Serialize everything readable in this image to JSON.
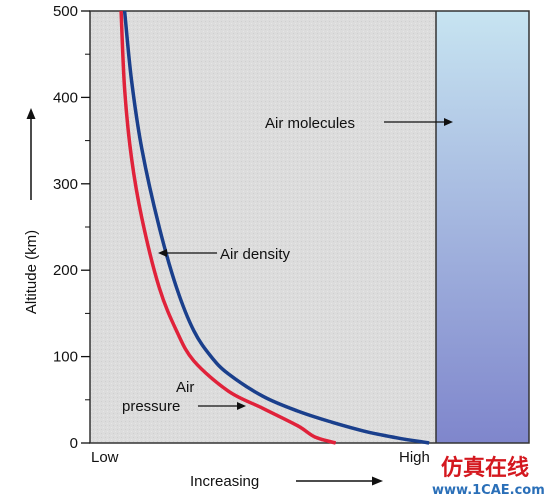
{
  "colors": {
    "plot_bg": "#dcdcdc",
    "density": "#1a3f8c",
    "pressure": "#e0223a",
    "molecules_top": "#c7e4f1",
    "molecules_bottom": "#7f86cc",
    "watermark_red": "#d4181f",
    "watermark_blue": "#2a6fb8"
  },
  "chart_data": {
    "type": "line",
    "ylabel": "Altitude (km)",
    "ylim": [
      0,
      500
    ],
    "yticks": [
      "0",
      "100",
      "200",
      "300",
      "400",
      "500"
    ],
    "x_left_label": "Low",
    "x_right_label": "High",
    "xlabel": "Increasing",
    "series": [
      {
        "name": "Air density",
        "points": [
          [
            0.98,
            0
          ],
          [
            0.95,
            2
          ],
          [
            0.9,
            5
          ],
          [
            0.8,
            13
          ],
          [
            0.7,
            24
          ],
          [
            0.6,
            37
          ],
          [
            0.5,
            54
          ],
          [
            0.4,
            80
          ],
          [
            0.35,
            100
          ],
          [
            0.3,
            130
          ],
          [
            0.25,
            180
          ],
          [
            0.2,
            250
          ],
          [
            0.15,
            340
          ],
          [
            0.12,
            420
          ],
          [
            0.1,
            500
          ]
        ]
      },
      {
        "name": "Air pressure",
        "points": [
          [
            0.71,
            0
          ],
          [
            0.65,
            7
          ],
          [
            0.6,
            20
          ],
          [
            0.5,
            40
          ],
          [
            0.4,
            60
          ],
          [
            0.3,
            95
          ],
          [
            0.25,
            130
          ],
          [
            0.2,
            180
          ],
          [
            0.15,
            260
          ],
          [
            0.12,
            330
          ],
          [
            0.1,
            410
          ],
          [
            0.09,
            500
          ]
        ]
      }
    ],
    "annotations": {
      "density": "Air density",
      "pressure_line1": "Air",
      "pressure_line2": "pressure",
      "molecules": "Air molecules"
    }
  },
  "watermark": {
    "chinese": "仿真在线",
    "url": "www.1CAE.com"
  }
}
